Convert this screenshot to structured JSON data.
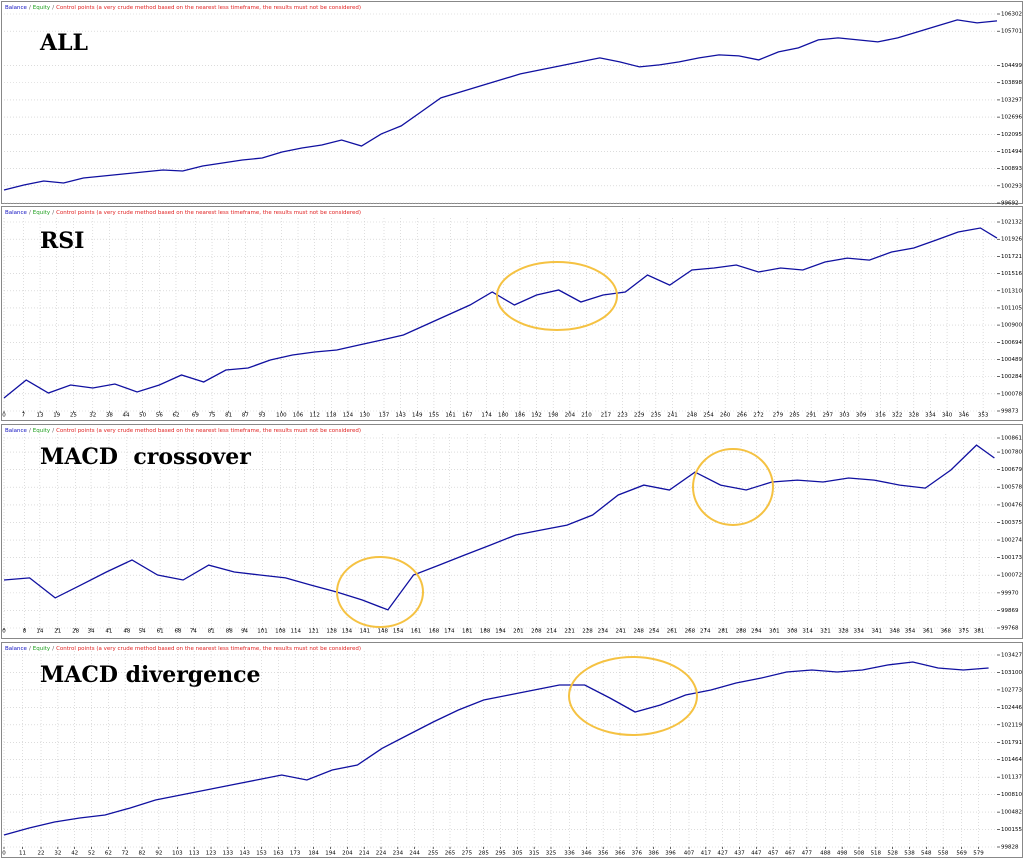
{
  "chart_data": [
    {
      "type": "line",
      "title": "ALL",
      "separator": "/",
      "legend": [
        {
          "name": "Balance",
          "color": "#1010c0"
        },
        {
          "name": "Equity",
          "color": "#20a020"
        },
        {
          "name": "Control points (a very crude method based on the nearest less timeframe, the results must not be considered)",
          "color": "#e02020"
        }
      ],
      "x": [
        0,
        10,
        20,
        30,
        40,
        50,
        60,
        70,
        80,
        90,
        100,
        110,
        120,
        130,
        140,
        150,
        160,
        170,
        180,
        190,
        200,
        210,
        220,
        230,
        240,
        250,
        260,
        270,
        280,
        290,
        300,
        310,
        320,
        330,
        340,
        350,
        360,
        370,
        380,
        390,
        400,
        410,
        420,
        430,
        440,
        450,
        460,
        470,
        480,
        490,
        500
      ],
      "series": [
        {
          "color": "#1010a0",
          "values": [
            100147,
            100322,
            100462,
            100392,
            100567,
            100637,
            100707,
            100777,
            100847,
            100812,
            100987,
            101092,
            101197,
            101267,
            101477,
            101617,
            101722,
            101897,
            101687,
            102107,
            102387,
            102877,
            103367,
            103577,
            103787,
            103997,
            104207,
            104347,
            104487,
            104627,
            104767,
            104627,
            104452,
            104522,
            104627,
            104767,
            104872,
            104837,
            104697,
            104977,
            105117,
            105397,
            105467,
            105397,
            105327,
            105467,
            105677,
            105887,
            106097,
            105992,
            106062
          ]
        }
      ],
      "xlim": [
        0,
        500
      ],
      "ylim": [
        99692,
        106302
      ],
      "yticks": [
        106302,
        105701,
        104499,
        103898,
        103297,
        102696,
        102095,
        101494,
        100893,
        100293,
        99692
      ],
      "grid": true
    },
    {
      "type": "line",
      "title": "RSI",
      "separator": "/",
      "legend": [
        {
          "name": "Balance",
          "color": "#1010c0"
        },
        {
          "name": "Equity",
          "color": "#20a020"
        },
        {
          "name": "Control points (a very crude method based on the nearest less timeframe, the results must not be considered)",
          "color": "#e02020"
        }
      ],
      "x": [
        0,
        8,
        16,
        24,
        32,
        40,
        48,
        56,
        64,
        72,
        80,
        88,
        96,
        104,
        112,
        120,
        128,
        136,
        144,
        152,
        160,
        168,
        176,
        184,
        192,
        200,
        208,
        216,
        224,
        232,
        240,
        248,
        256,
        264,
        272,
        280,
        288,
        296,
        304,
        312,
        320,
        328,
        336,
        344,
        352,
        358
      ],
      "series": [
        {
          "color": "#1010a0",
          "values": [
            100028,
            100243,
            100088,
            100184,
            100148,
            100196,
            100100,
            100184,
            100303,
            100220,
            100363,
            100387,
            100482,
            100542,
            100578,
            100602,
            100662,
            100721,
            100781,
            100901,
            101020,
            101140,
            101295,
            101140,
            101259,
            101319,
            101176,
            101259,
            101295,
            101498,
            101378,
            101558,
            101582,
            101618,
            101534,
            101582,
            101558,
            101654,
            101701,
            101677,
            101773,
            101821,
            101916,
            102012,
            102060,
            101940
          ]
        }
      ],
      "xlim": [
        0,
        358
      ],
      "ylim": [
        99873,
        102132
      ],
      "yticks": [
        102132,
        101926,
        101721,
        101516,
        101310,
        101105,
        100900,
        100694,
        100489,
        100284,
        100078,
        99873
      ],
      "xticks": [
        0,
        7,
        13,
        19,
        25,
        32,
        38,
        44,
        50,
        56,
        62,
        69,
        75,
        81,
        87,
        93,
        100,
        106,
        112,
        118,
        124,
        130,
        137,
        143,
        149,
        155,
        161,
        167,
        174,
        180,
        186,
        192,
        198,
        204,
        210,
        217,
        223,
        229,
        235,
        241,
        248,
        254,
        260,
        266,
        272,
        279,
        285,
        291,
        297,
        303,
        309,
        316,
        322,
        328,
        334,
        340,
        346,
        353
      ],
      "grid": true
    },
    {
      "type": "line",
      "title": "MACD  crossover",
      "separator": "/",
      "legend": [
        {
          "name": "Balance",
          "color": "#1010c0"
        },
        {
          "name": "Equity",
          "color": "#20a020"
        },
        {
          "name": "Control points (a very crude method based on the nearest less timeframe, the results must not be considered)",
          "color": "#e02020"
        }
      ],
      "x": [
        0,
        10,
        20,
        30,
        40,
        50,
        60,
        70,
        80,
        90,
        100,
        110,
        120,
        130,
        140,
        150,
        160,
        170,
        180,
        190,
        200,
        210,
        220,
        230,
        240,
        250,
        260,
        270,
        280,
        290,
        300,
        310,
        320,
        330,
        340,
        350,
        360,
        370,
        380,
        387
      ],
      "series": [
        {
          "color": "#1010a0",
          "values": [
            100044,
            100056,
            99941,
            100015,
            100090,
            100159,
            100073,
            100044,
            100130,
            100090,
            100073,
            100056,
            100015,
            99975,
            99929,
            99872,
            100073,
            100130,
            100188,
            100245,
            100303,
            100332,
            100360,
            100418,
            100533,
            100590,
            100562,
            100665,
            100590,
            100562,
            100608,
            100619,
            100608,
            100631,
            100619,
            100590,
            100573,
            100677,
            100820,
            100746
          ]
        }
      ],
      "xlim": [
        0,
        388
      ],
      "ylim": [
        99768,
        100861
      ],
      "yticks": [
        100861,
        100780,
        100679,
        100578,
        100476,
        100375,
        100274,
        100173,
        100072,
        99970,
        99869,
        99768
      ],
      "xticks": [
        0,
        8,
        14,
        21,
        28,
        34,
        41,
        48,
        54,
        61,
        68,
        74,
        81,
        88,
        94,
        101,
        108,
        114,
        121,
        128,
        134,
        141,
        148,
        154,
        161,
        168,
        174,
        181,
        188,
        194,
        201,
        208,
        214,
        221,
        228,
        234,
        241,
        248,
        254,
        261,
        268,
        274,
        281,
        288,
        294,
        301,
        308,
        314,
        321,
        328,
        334,
        341,
        348,
        354,
        361,
        368,
        375,
        381
      ],
      "grid": true
    },
    {
      "type": "line",
      "title": "MACD divergence",
      "separator": "/",
      "legend": [
        {
          "name": "Balance",
          "color": "#1010c0"
        },
        {
          "name": "Equity",
          "color": "#20a020"
        },
        {
          "name": "Control points (a very crude method based on the nearest less timeframe, the results must not be considered)",
          "color": "#e02020"
        }
      ],
      "x": [
        0,
        15,
        30,
        45,
        60,
        75,
        90,
        105,
        120,
        135,
        150,
        165,
        180,
        195,
        210,
        225,
        240,
        255,
        270,
        285,
        300,
        315,
        330,
        345,
        360,
        375,
        390,
        405,
        420,
        435,
        450,
        465,
        480,
        495,
        510,
        525,
        540,
        555,
        570,
        585
      ],
      "series": [
        {
          "color": "#1010a0",
          "values": [
            100053,
            100184,
            100297,
            100372,
            100428,
            100559,
            100709,
            100803,
            100896,
            100990,
            101084,
            101178,
            101084,
            101271,
            101365,
            101684,
            101928,
            102171,
            102396,
            102584,
            102677,
            102771,
            102865,
            102865,
            102621,
            102359,
            102490,
            102677,
            102771,
            102902,
            102996,
            103109,
            103146,
            103109,
            103146,
            103240,
            103296,
            103184,
            103146,
            103184
          ]
        }
      ],
      "xlim": [
        0,
        590
      ],
      "ylim": [
        99828,
        103427
      ],
      "yticks": [
        103427,
        103100,
        102773,
        102446,
        102119,
        101791,
        101464,
        101137,
        100810,
        100482,
        100155,
        99828
      ],
      "xticks": [
        0,
        11,
        22,
        32,
        42,
        52,
        62,
        72,
        82,
        92,
        103,
        113,
        123,
        133,
        143,
        153,
        163,
        173,
        184,
        194,
        204,
        214,
        224,
        234,
        244,
        255,
        265,
        275,
        285,
        295,
        305,
        315,
        325,
        336,
        346,
        356,
        366,
        376,
        386,
        396,
        407,
        417,
        427,
        437,
        447,
        457,
        467,
        477,
        488,
        498,
        508,
        518,
        528,
        538,
        548,
        558,
        569,
        579
      ],
      "grid": true
    }
  ]
}
